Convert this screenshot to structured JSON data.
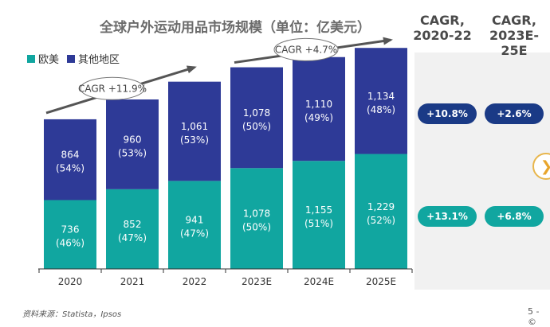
{
  "chart_data": {
    "type": "bar",
    "stacked": true,
    "title": "全球户外运动用品市场规模（单位：亿美元）",
    "categories": [
      "2020",
      "2021",
      "2022",
      "2023E",
      "2024E",
      "2025E"
    ],
    "series": [
      {
        "name": "欧美",
        "color": "#11a6a0",
        "values": [
          736,
          852,
          941,
          1078,
          1155,
          1229
        ],
        "shares": [
          "(46%)",
          "(47%)",
          "(47%)",
          "(50%)",
          "(51%)",
          "(52%)"
        ]
      },
      {
        "name": "其他地区",
        "color": "#2e3a97",
        "values": [
          864,
          960,
          1061,
          1078,
          1110,
          1134
        ],
        "shares": [
          "(54%)",
          "(53%)",
          "(53%)",
          "(50%)",
          "(49%)",
          "(48%)"
        ]
      }
    ],
    "value_labels": [
      [
        "736",
        "852",
        "941",
        "1,078",
        "1,155",
        "1,229"
      ],
      [
        "864",
        "960",
        "1,061",
        "1,078",
        "1,110",
        "1,134"
      ]
    ],
    "ylim": [
      0,
      2450
    ],
    "annotations": [
      {
        "text": "CAGR +11.9%",
        "from": "2020",
        "to": "2022"
      },
      {
        "text": "CAGR +4.7%",
        "from": "2023E",
        "to": "2025E"
      }
    ]
  },
  "legend": [
    {
      "label": "欧美",
      "color": "#11a6a0"
    },
    {
      "label": "其他地区",
      "color": "#2e3a97"
    }
  ],
  "cagr_panel": {
    "col1_header": "CAGR,\n2020-22",
    "col2_header": "CAGR,\n2023E-25E",
    "other_2020_22": "+10.8%",
    "other_2023_25": "+2.6%",
    "west_2020_22": "+13.1%",
    "west_2023_25": "+6.8%"
  },
  "next_icon": "❯",
  "source": "资料来源：Statista，Ipsos",
  "page": "5 - ©"
}
